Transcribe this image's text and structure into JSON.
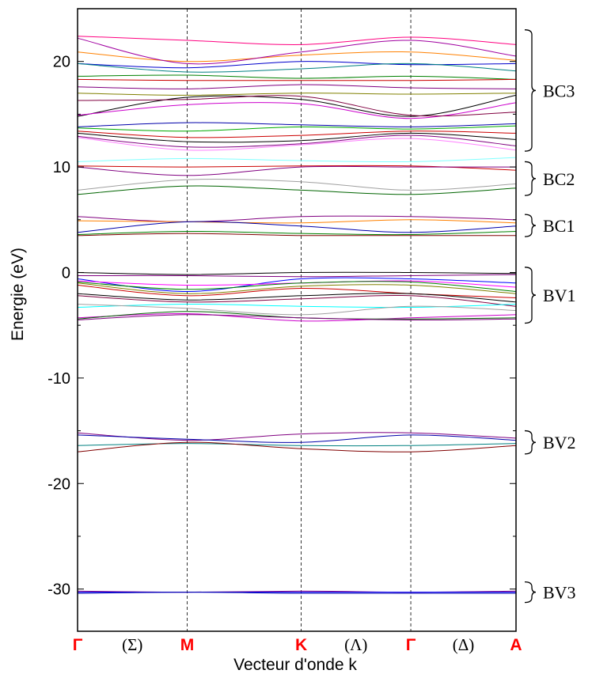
{
  "chart_data": {
    "type": "line",
    "title": "",
    "xlabel": "Vecteur d'onde k",
    "ylabel": "Energie (eV)",
    "ylim": [
      -34,
      25
    ],
    "yticks": [
      -30,
      -20,
      -10,
      0,
      10,
      20
    ],
    "ytick_labels": [
      "-30",
      "-20",
      "-10",
      "0",
      "10",
      "20"
    ],
    "grid": false,
    "k_path": [
      {
        "label": "Γ",
        "pos": 0.0,
        "style": "point"
      },
      {
        "label": "(Σ)",
        "pos": 0.125,
        "style": "direction"
      },
      {
        "label": "M",
        "pos": 0.25,
        "style": "point"
      },
      {
        "label": "K",
        "pos": 0.51,
        "style": "point"
      },
      {
        "label": "(Λ)",
        "pos": 0.635,
        "style": "direction"
      },
      {
        "label": "Γ",
        "pos": 0.76,
        "style": "point"
      },
      {
        "label": "(Δ)",
        "pos": 0.88,
        "style": "direction"
      },
      {
        "label": "A",
        "pos": 1.0,
        "style": "point"
      }
    ],
    "x": [
      0.0,
      0.25,
      0.51,
      0.76,
      1.0
    ],
    "groups": [
      {
        "label": "BC3",
        "ymin": 11.5,
        "ymax": 23.0
      },
      {
        "label": "BC2",
        "ymin": 7.3,
        "ymax": 10.5
      },
      {
        "label": "BC1",
        "ymin": 3.4,
        "ymax": 5.5
      },
      {
        "label": "BV1",
        "ymin": -4.8,
        "ymax": 0.5
      },
      {
        "label": "BV2",
        "ymin": -17.2,
        "ymax": -15.0
      },
      {
        "label": "BV3",
        "ymin": -30.7,
        "ymax": -29.9
      }
    ],
    "series": [
      {
        "color": "#ff0080",
        "values": [
          22.4,
          22.0,
          21.6,
          22.3,
          21.6
        ]
      },
      {
        "color": "#ff8000",
        "values": [
          20.9,
          20.0,
          20.6,
          20.9,
          20.1
        ]
      },
      {
        "color": "#a000a0",
        "values": [
          22.2,
          19.8,
          20.9,
          22.0,
          20.5
        ]
      },
      {
        "color": "#0000cc",
        "values": [
          19.8,
          19.4,
          20.0,
          19.7,
          19.8
        ]
      },
      {
        "color": "#008080",
        "values": [
          19.8,
          19.0,
          19.3,
          19.8,
          19.1
        ]
      },
      {
        "color": "#008000",
        "values": [
          18.6,
          18.7,
          18.4,
          18.6,
          18.3
        ]
      },
      {
        "color": "#cc0000",
        "values": [
          18.3,
          18.2,
          18.2,
          18.2,
          18.3
        ]
      },
      {
        "color": "#800080",
        "values": [
          17.6,
          17.4,
          17.8,
          17.5,
          17.4
        ]
      },
      {
        "color": "#808000",
        "values": [
          17.0,
          16.8,
          17.0,
          16.9,
          17.0
        ]
      },
      {
        "color": "#000000",
        "values": [
          14.8,
          16.6,
          16.4,
          14.8,
          16.8
        ]
      },
      {
        "color": "#cc00cc",
        "values": [
          14.9,
          15.9,
          16.0,
          14.6,
          16.1
        ]
      },
      {
        "color": "#800040",
        "values": [
          16.3,
          16.4,
          16.7,
          14.9,
          15.2
        ]
      },
      {
        "color": "#0000aa",
        "values": [
          13.8,
          14.2,
          14.0,
          13.8,
          14.1
        ]
      },
      {
        "color": "#00aa00",
        "values": [
          13.7,
          13.4,
          13.8,
          13.6,
          13.9
        ]
      },
      {
        "color": "#cc0000",
        "values": [
          13.4,
          12.8,
          13.0,
          13.4,
          13.2
        ]
      },
      {
        "color": "#000000",
        "values": [
          13.2,
          12.4,
          12.5,
          13.2,
          12.6
        ]
      },
      {
        "color": "#800080",
        "values": [
          12.9,
          11.9,
          12.2,
          13.0,
          12.0
        ]
      },
      {
        "color": "#ff80ff",
        "values": [
          12.8,
          11.6,
          12.1,
          12.7,
          11.6
        ]
      },
      {
        "color": "#80ffff",
        "values": [
          10.5,
          10.8,
          10.6,
          10.5,
          10.9
        ]
      },
      {
        "color": "#cc0000",
        "values": [
          10.1,
          10.0,
          10.1,
          10.1,
          9.7
        ]
      },
      {
        "color": "#800080",
        "values": [
          10.0,
          9.2,
          10.0,
          10.0,
          10.0
        ]
      },
      {
        "color": "#a0a0a0",
        "values": [
          7.8,
          8.8,
          8.6,
          7.8,
          8.4
        ]
      },
      {
        "color": "#006400",
        "values": [
          7.4,
          8.2,
          7.8,
          7.4,
          8.0
        ]
      },
      {
        "color": "#800080",
        "values": [
          5.3,
          4.8,
          5.3,
          5.3,
          5.0
        ]
      },
      {
        "color": "#ff8000",
        "values": [
          4.9,
          4.8,
          4.7,
          5.0,
          4.7
        ]
      },
      {
        "color": "#0000aa",
        "values": [
          3.8,
          4.8,
          4.4,
          3.8,
          4.4
        ]
      },
      {
        "color": "#008000",
        "values": [
          3.6,
          3.9,
          3.7,
          3.6,
          3.9
        ]
      },
      {
        "color": "#800000",
        "values": [
          3.5,
          3.7,
          3.5,
          3.5,
          3.5
        ]
      },
      {
        "color": "#000000",
        "values": [
          0.0,
          -0.2,
          0.0,
          0.0,
          -0.1
        ]
      },
      {
        "color": "#800080",
        "values": [
          -0.3,
          -0.3,
          -0.4,
          -0.3,
          -0.2
        ]
      },
      {
        "color": "#0000ff",
        "values": [
          -0.6,
          -1.8,
          -0.6,
          -0.6,
          -1.0
        ]
      },
      {
        "color": "#ff00ff",
        "values": [
          -0.8,
          -1.2,
          -1.0,
          -0.8,
          -1.4
        ]
      },
      {
        "color": "#008000",
        "values": [
          -0.9,
          -1.6,
          -1.0,
          -0.9,
          -1.8
        ]
      },
      {
        "color": "#808000",
        "values": [
          -1.0,
          -2.0,
          -1.3,
          -1.2,
          -2.0
        ]
      },
      {
        "color": "#cc0000",
        "values": [
          -1.2,
          -2.2,
          -1.5,
          -2.0,
          -2.4
        ]
      },
      {
        "color": "#000000",
        "values": [
          -2.0,
          -2.6,
          -2.2,
          -2.0,
          -2.8
        ]
      },
      {
        "color": "#800040",
        "values": [
          -2.2,
          -2.8,
          -2.5,
          -2.2,
          -3.2
        ]
      },
      {
        "color": "#00ffff",
        "values": [
          -3.3,
          -3.0,
          -3.2,
          -3.3,
          -3.0
        ]
      },
      {
        "color": "#a0a0a0",
        "values": [
          -3.0,
          -3.4,
          -4.0,
          -3.2,
          -3.6
        ]
      },
      {
        "color": "#cc00cc",
        "values": [
          -4.3,
          -3.9,
          -4.6,
          -4.3,
          -4.0
        ]
      },
      {
        "color": "#006400",
        "values": [
          -4.4,
          -3.7,
          -4.3,
          -4.4,
          -4.3
        ]
      },
      {
        "color": "#800080",
        "values": [
          -4.5,
          -4.0,
          -4.3,
          -4.5,
          -4.4
        ]
      },
      {
        "color": "#800080",
        "values": [
          -15.2,
          -15.9,
          -15.3,
          -15.2,
          -15.7
        ]
      },
      {
        "color": "#0000aa",
        "values": [
          -15.4,
          -15.8,
          -16.1,
          -15.4,
          -15.9
        ]
      },
      {
        "color": "#008080",
        "values": [
          -16.4,
          -16.2,
          -16.4,
          -16.4,
          -16.2
        ]
      },
      {
        "color": "#800000",
        "values": [
          -17.0,
          -16.1,
          -16.7,
          -17.0,
          -16.4
        ]
      },
      {
        "color": "#800080",
        "values": [
          -30.2,
          -30.3,
          -30.2,
          -30.3,
          -30.2
        ]
      },
      {
        "color": "#0000ff",
        "values": [
          -30.3,
          -30.3,
          -30.3,
          -30.3,
          -30.3
        ]
      },
      {
        "color": "#0000aa",
        "values": [
          -30.4,
          -30.3,
          -30.4,
          -30.4,
          -30.4
        ]
      }
    ]
  }
}
